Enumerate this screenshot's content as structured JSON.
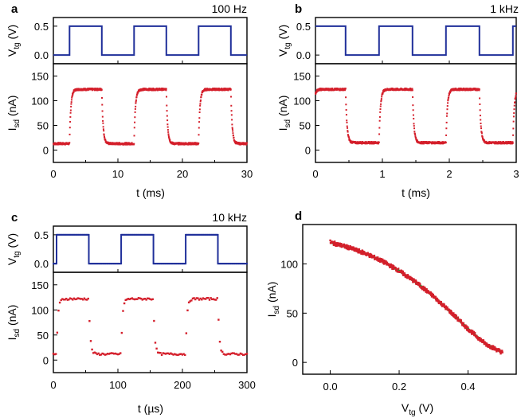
{
  "colors": {
    "vtg": "#1f2f9a",
    "isd": "#d41f2b",
    "fit": "#2e8b2e",
    "axis": "#000000"
  },
  "chart_data": [
    {
      "panel": "a",
      "type": "line",
      "title": "100 Hz",
      "xlabel": "t (ms)",
      "xlim": [
        0,
        30
      ],
      "xticks": [
        0,
        10,
        20,
        30
      ],
      "top": {
        "ylabel_main": "V",
        "ylabel_sub": "tg",
        "ylabel_unit": " (V)",
        "ylim": [
          -0.15,
          0.65
        ],
        "yticks": [
          "0.0",
          "0.5"
        ],
        "ytick_values": [
          0.0,
          0.5
        ],
        "low": 0.0,
        "high": 0.5,
        "phase": 2.5,
        "period": 10
      },
      "bottom": {
        "ylabel_main": "I",
        "ylabel_sub": "sd",
        "ylabel_unit": " (nA)",
        "ylim": [
          -25,
          175
        ],
        "yticks": [
          "0",
          "50",
          "100",
          "150"
        ],
        "ytick_values": [
          0,
          50,
          100,
          150
        ],
        "low": 13,
        "high": 123,
        "phase": 2.5,
        "period": 10
      }
    },
    {
      "panel": "b",
      "type": "line",
      "title": "1 kHz",
      "xlabel": "t (ms)",
      "xlim": [
        0,
        3
      ],
      "xticks": [
        0,
        1,
        2,
        3
      ],
      "top": {
        "ylabel_main": "V",
        "ylabel_sub": "tg",
        "ylabel_unit": " (V)",
        "ylim": [
          -0.15,
          0.65
        ],
        "yticks": [
          "0.0",
          "0.5"
        ],
        "ytick_values": [
          0.0,
          0.5
        ],
        "low": 0.0,
        "high": 0.5,
        "phase": -0.05,
        "period": 1
      },
      "bottom": {
        "ylabel_main": "I",
        "ylabel_sub": "sd",
        "ylabel_unit": " (nA)",
        "ylim": [
          -25,
          175
        ],
        "yticks": [
          "0",
          "50",
          "100",
          "150"
        ],
        "ytick_values": [
          0,
          50,
          100,
          150
        ],
        "low": 15,
        "high": 123,
        "phase": -0.05,
        "period": 1
      }
    },
    {
      "panel": "c",
      "type": "line",
      "title": "10 kHz",
      "xlabel_main": "t (",
      "xlabel_unit": "µs)",
      "xlim": [
        0,
        300
      ],
      "xticks": [
        0,
        100,
        200,
        300
      ],
      "top": {
        "ylabel_main": "V",
        "ylabel_sub": "tg",
        "ylabel_unit": " (V)",
        "ylim": [
          -0.15,
          0.65
        ],
        "yticks": [
          "0.0",
          "0.5"
        ],
        "ytick_values": [
          0.0,
          0.5
        ],
        "low": 0.0,
        "high": 0.5,
        "phase": 5,
        "period": 100
      },
      "bottom": {
        "ylabel_main": "I",
        "ylabel_sub": "sd",
        "ylabel_unit": " (nA)",
        "ylim": [
          -25,
          175
        ],
        "yticks": [
          "0",
          "50",
          "100",
          "150"
        ],
        "ytick_values": [
          0,
          50,
          100,
          150
        ],
        "low": 12,
        "high": 122,
        "phase": 5,
        "period": 100
      }
    },
    {
      "panel": "d",
      "type": "scatter",
      "xlabel_main": "V",
      "xlabel_sub": "tg",
      "xlabel_unit": " (V)",
      "ylabel_main": "I",
      "ylabel_sub": "sd",
      "ylabel_unit": " (nA)",
      "xlim": [
        -0.08,
        0.54
      ],
      "ylim": [
        -12,
        140
      ],
      "xticks": [
        "0.0",
        "0.2",
        "0.4"
      ],
      "xtick_values": [
        0.0,
        0.2,
        0.4
      ],
      "yticks": [
        "0",
        "50",
        "100"
      ],
      "ytick_values": [
        0,
        50,
        100
      ],
      "curve": {
        "x": [
          0.0,
          0.05,
          0.1,
          0.15,
          0.2,
          0.25,
          0.3,
          0.35,
          0.4,
          0.45,
          0.5
        ],
        "y": [
          122,
          117,
          111,
          103,
          93,
          81,
          67,
          51,
          34,
          19,
          10
        ]
      }
    }
  ]
}
